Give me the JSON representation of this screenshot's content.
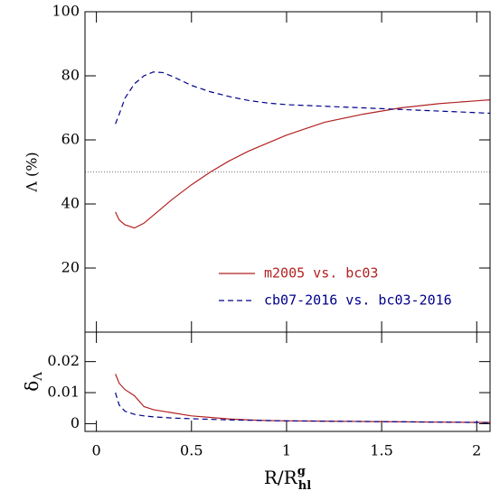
{
  "chart_data": [
    {
      "type": "line",
      "y_label": "Λ (%)",
      "x": [
        0.1,
        0.12,
        0.15,
        0.2,
        0.25,
        0.3,
        0.35,
        0.4,
        0.5,
        0.6,
        0.7,
        0.8,
        0.9,
        1.0,
        1.2,
        1.4,
        1.6,
        1.8,
        2.0,
        2.07
      ],
      "xlim": [
        -0.06,
        2.07
      ],
      "ylim": [
        0,
        100
      ],
      "yticks": [
        20,
        40,
        60,
        80,
        100
      ],
      "hline": 50,
      "legend": "lower right",
      "series": [
        {
          "name": "m2005 vs. bc03",
          "color": "#b22222",
          "linestyle": "solid",
          "values": [
            37.5,
            35,
            33.5,
            32.5,
            34,
            36.5,
            39,
            41.5,
            46,
            50,
            53.5,
            56.5,
            59,
            61.5,
            65.5,
            68,
            70,
            71.3,
            72.2,
            72.5
          ]
        },
        {
          "name": "cb07-2016 vs. bc03-2016",
          "color": "#00008b",
          "linestyle": "dashed",
          "values": [
            65,
            68,
            73,
            77.5,
            80,
            81.2,
            81,
            79.8,
            77,
            75,
            73.5,
            72.3,
            71.5,
            71,
            70.5,
            70,
            69.5,
            69,
            68.5,
            68.3
          ]
        }
      ]
    },
    {
      "type": "line",
      "y_label": {
        "main": "δ",
        "sub": "Λ"
      },
      "x_label": {
        "main": "R/R",
        "sup": "g",
        "sub": "hl"
      },
      "x": [
        0.1,
        0.12,
        0.15,
        0.2,
        0.25,
        0.3,
        0.35,
        0.4,
        0.5,
        0.6,
        0.7,
        0.8,
        0.9,
        1.0,
        1.2,
        1.4,
        1.6,
        1.8,
        2.0,
        2.07
      ],
      "xlim": [
        -0.06,
        2.07
      ],
      "xticks": [
        0,
        0.5,
        1,
        1.5,
        2
      ],
      "ylim": [
        -0.0025,
        0.0295
      ],
      "yticks": [
        0,
        0.01,
        0.02
      ],
      "series": [
        {
          "color": "#b22222",
          "linestyle": "solid",
          "values": [
            0.016,
            0.013,
            0.011,
            0.009,
            0.0055,
            0.0045,
            0.004,
            0.0035,
            0.0025,
            0.002,
            0.0015,
            0.0012,
            0.001,
            0.0009,
            0.0008,
            0.0007,
            0.0006,
            0.0005,
            0.0004,
            0.0004
          ]
        },
        {
          "color": "#00008b",
          "linestyle": "dashed",
          "values": [
            0.01,
            0.006,
            0.004,
            0.003,
            0.0025,
            0.0022,
            0.002,
            0.0018,
            0.0016,
            0.0014,
            0.0012,
            0.0011,
            0.001,
            0.0009,
            0.0008,
            0.0007,
            0.0006,
            0.0005,
            0.0004,
            0.0003
          ]
        }
      ]
    }
  ]
}
